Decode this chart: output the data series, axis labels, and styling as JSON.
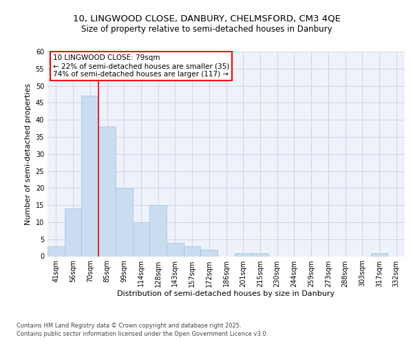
{
  "title_line1": "10, LINGWOOD CLOSE, DANBURY, CHELMSFORD, CM3 4QE",
  "title_line2": "Size of property relative to semi-detached houses in Danbury",
  "xlabel": "Distribution of semi-detached houses by size in Danbury",
  "ylabel": "Number of semi-detached properties",
  "categories": [
    "41sqm",
    "56sqm",
    "70sqm",
    "85sqm",
    "99sqm",
    "114sqm",
    "128sqm",
    "143sqm",
    "157sqm",
    "172sqm",
    "186sqm",
    "201sqm",
    "215sqm",
    "230sqm",
    "244sqm",
    "259sqm",
    "273sqm",
    "288sqm",
    "303sqm",
    "317sqm",
    "332sqm"
  ],
  "values": [
    3,
    14,
    47,
    38,
    20,
    10,
    15,
    4,
    3,
    2,
    0,
    1,
    1,
    0,
    0,
    0,
    0,
    0,
    0,
    1,
    0
  ],
  "bar_color": "#c9ddf0",
  "bar_edge_color": "#a8c4e0",
  "red_line_x": 2.5,
  "annotation_title": "10 LINGWOOD CLOSE: 79sqm",
  "annotation_line1": "← 22% of semi-detached houses are smaller (35)",
  "annotation_line2": "74% of semi-detached houses are larger (117) →",
  "ylim": [
    0,
    60
  ],
  "yticks": [
    0,
    5,
    10,
    15,
    20,
    25,
    30,
    35,
    40,
    45,
    50,
    55,
    60
  ],
  "plot_bg_color": "#eef2fb",
  "fig_bg_color": "#ffffff",
  "grid_color": "#c8d0e0",
  "footer_line1": "Contains HM Land Registry data © Crown copyright and database right 2025.",
  "footer_line2": "Contains public sector information licensed under the Open Government Licence v3.0.",
  "title_fontsize": 9.5,
  "subtitle_fontsize": 8.5,
  "axis_label_fontsize": 8,
  "tick_fontsize": 7,
  "annotation_fontsize": 7.5,
  "footer_fontsize": 6
}
